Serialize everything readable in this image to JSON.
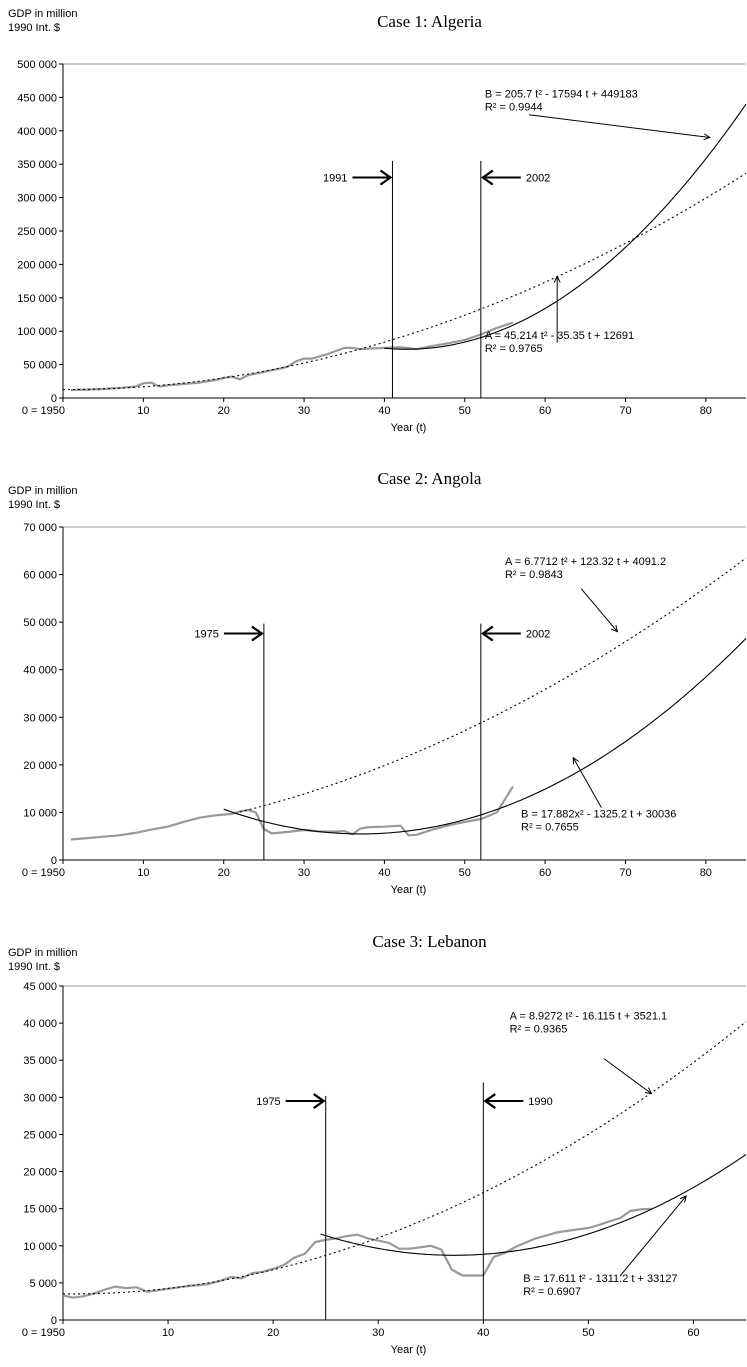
{
  "chart_data": [
    {
      "type": "line",
      "title": "Case 1: Algeria",
      "ylabel_line1": "GDP in million",
      "ylabel_line2": "1990 Int. $",
      "xlabel": "Year (t)",
      "xlim": [
        0,
        85
      ],
      "ylim": [
        0,
        500000
      ],
      "x_ticks": [
        0,
        10,
        20,
        30,
        40,
        50,
        60,
        70,
        80
      ],
      "x_tick_labels": [
        "0 = 1950",
        "10",
        "20",
        "30",
        "40",
        "50",
        "60",
        "70",
        "80"
      ],
      "y_ticks": [
        0,
        50000,
        100000,
        150000,
        200000,
        250000,
        300000,
        350000,
        400000,
        450000,
        500000
      ],
      "y_tick_labels": [
        "0",
        "50 000",
        "100 000",
        "150 000",
        "200 000",
        "250 000",
        "300 000",
        "350 000",
        "400 000",
        "450 000",
        "500 000"
      ],
      "grid": false,
      "series": [
        {
          "kind": "observed",
          "color": "#999999",
          "x": [
            1,
            3,
            5,
            7,
            9,
            10,
            11,
            12,
            13,
            15,
            17,
            19,
            20,
            21,
            22,
            23,
            25,
            27,
            28,
            29,
            30,
            31,
            33,
            35,
            36,
            37,
            38,
            40,
            42,
            44,
            46,
            48,
            50,
            52,
            54,
            56
          ],
          "y": [
            12000,
            12500,
            13500,
            15000,
            17000,
            22000,
            23000,
            17000,
            19000,
            21000,
            23000,
            27000,
            30000,
            32000,
            28000,
            34000,
            39000,
            44000,
            47000,
            55000,
            59000,
            59000,
            66000,
            75000,
            75000,
            73000,
            74000,
            75000,
            76000,
            73000,
            78000,
            82000,
            87000,
            95000,
            105000,
            113000
          ]
        },
        {
          "kind": "fit_A",
          "style": "dotted",
          "x_from": 0,
          "x_to": 85,
          "coeffs": [
            45.214,
            -35.35,
            12691
          ]
        },
        {
          "kind": "fit_B",
          "style": "solid",
          "x_from": 40,
          "x_to": 85,
          "coeffs": [
            205.7,
            -17594,
            449183
          ]
        }
      ],
      "markers": [
        {
          "x": 41,
          "label": "1991",
          "y_top": 355000,
          "arrow_y": 330000,
          "side": "left"
        },
        {
          "x": 52,
          "label": "2002",
          "y_top": 355000,
          "arrow_y": 330000,
          "side": "right"
        }
      ],
      "annotations": [
        {
          "id": "B",
          "line1": "B = 205.7 t² - 17594 t + 449183",
          "line2": "R² = 0.9944",
          "text_x": 52.5,
          "text_y": 450000,
          "from": [
            58,
            424000
          ],
          "to": [
            80.5,
            390000
          ]
        },
        {
          "id": "A",
          "line1": "A = 45.214 t² - 35.35 t + 12691",
          "line2": "R² = 0.9765",
          "text_x": 52.5,
          "text_y": 88000,
          "from": [
            61.5,
            83000
          ],
          "to": [
            61.5,
            182000
          ]
        }
      ]
    },
    {
      "type": "line",
      "title": "Case 2: Angola",
      "ylabel_line1": "GDP in million",
      "ylabel_line2": "1990 Int. $",
      "xlabel": "Year (t)",
      "xlim": [
        0,
        85
      ],
      "ylim": [
        0,
        70000
      ],
      "x_ticks": [
        0,
        10,
        20,
        30,
        40,
        50,
        60,
        70,
        80
      ],
      "x_tick_labels": [
        "0 = 1950",
        "10",
        "20",
        "30",
        "40",
        "50",
        "60",
        "70",
        "80"
      ],
      "y_ticks": [
        0,
        10000,
        20000,
        30000,
        40000,
        50000,
        60000,
        70000
      ],
      "y_tick_labels": [
        "0",
        "10 000",
        "20 000",
        "30 000",
        "40 000",
        "50 000",
        "60 000",
        "70 000"
      ],
      "grid": false,
      "series": [
        {
          "kind": "observed",
          "color": "#999999",
          "x": [
            1,
            3,
            5,
            7,
            9,
            11,
            13,
            15,
            17,
            19,
            21,
            22,
            23,
            24,
            25,
            26,
            28,
            30,
            32,
            34,
            35,
            36,
            37,
            38,
            40,
            42,
            43,
            44,
            46,
            48,
            50,
            52,
            54,
            56
          ],
          "y": [
            4300,
            4600,
            4900,
            5200,
            5700,
            6400,
            7000,
            8000,
            8900,
            9400,
            9700,
            10200,
            10500,
            10000,
            6500,
            5600,
            5900,
            6300,
            6000,
            6000,
            6100,
            5400,
            6600,
            6900,
            7000,
            7200,
            5200,
            5300,
            6400,
            7300,
            8000,
            8600,
            10000,
            15500
          ]
        },
        {
          "kind": "fit_A",
          "style": "dotted",
          "x_from": 22,
          "x_to": 85,
          "coeffs": [
            6.7712,
            123.32,
            4091.2
          ]
        },
        {
          "kind": "fit_B",
          "style": "solid",
          "x_from": 20,
          "x_to": 85,
          "coeffs": [
            17.882,
            -1325.2,
            30036
          ]
        }
      ],
      "markers": [
        {
          "x": 25,
          "label": "1975",
          "y_top": 49700,
          "arrow_y": 47600,
          "side": "left"
        },
        {
          "x": 52,
          "label": "2002",
          "y_top": 49700,
          "arrow_y": 47600,
          "side": "right"
        }
      ],
      "annotations": [
        {
          "id": "A",
          "line1": "A = 6.7712 t² + 123.32 t + 4091.2",
          "line2": "R² = 0.9843",
          "text_x": 55,
          "text_y": 62000,
          "from": [
            64.5,
            57000
          ],
          "to": [
            69,
            48000
          ]
        },
        {
          "id": "B",
          "line1": "B = 17.882x² - 1325.2 t + 30036",
          "line2": "R² = 0.7655",
          "text_x": 57,
          "text_y": 8900,
          "from": [
            67,
            11000
          ],
          "to": [
            63.5,
            21500
          ]
        }
      ]
    },
    {
      "type": "line",
      "title": "Case 3: Lebanon",
      "ylabel_line1": "GDP in million",
      "ylabel_line2": "1990 Int. $",
      "xlabel": "Year (t)",
      "xlim": [
        0,
        65
      ],
      "ylim": [
        0,
        45000
      ],
      "x_ticks": [
        0,
        10,
        20,
        30,
        40,
        50,
        60
      ],
      "x_tick_labels": [
        "0 = 1950",
        "10",
        "20",
        "30",
        "40",
        "50",
        "60"
      ],
      "y_ticks": [
        0,
        5000,
        10000,
        15000,
        20000,
        25000,
        30000,
        35000,
        40000,
        45000
      ],
      "y_tick_labels": [
        "0",
        "5 000",
        "10 000",
        "15 000",
        "20 000",
        "25 000",
        "30 000",
        "35 000",
        "40 000",
        "45 000"
      ],
      "grid": false,
      "series": [
        {
          "kind": "observed",
          "color": "#999999",
          "x": [
            0,
            1,
            2,
            3,
            4,
            5,
            6,
            7,
            8,
            9,
            10,
            11,
            12,
            13,
            14,
            15,
            16,
            17,
            18,
            19,
            20,
            21,
            22,
            23,
            24,
            25,
            26,
            27,
            28,
            29,
            30,
            31,
            32,
            33,
            34,
            35,
            36,
            37,
            38,
            39,
            40,
            41,
            42,
            43,
            44,
            45,
            46,
            47,
            48,
            49,
            50,
            51,
            52,
            53,
            54,
            55,
            56
          ],
          "y": [
            3300,
            3000,
            3200,
            3600,
            4100,
            4500,
            4300,
            4400,
            3800,
            4000,
            4200,
            4400,
            4600,
            4700,
            4900,
            5300,
            5800,
            5600,
            6300,
            6500,
            6900,
            7400,
            8400,
            8900,
            10500,
            10800,
            11000,
            11300,
            11500,
            11000,
            10700,
            10400,
            9600,
            9600,
            9800,
            10000,
            9500,
            6800,
            6000,
            6000,
            6000,
            8500,
            9000,
            9800,
            10400,
            11000,
            11400,
            11800,
            12000,
            12200,
            12400,
            12800,
            13300,
            13700,
            14700,
            14900,
            15000
          ]
        },
        {
          "kind": "fit_A",
          "style": "dotted",
          "x_from": 0,
          "x_to": 65,
          "coeffs": [
            8.9272,
            -16.115,
            3521.1
          ]
        },
        {
          "kind": "fit_B",
          "style": "solid",
          "x_from": 24.5,
          "x_to": 65,
          "coeffs": [
            17.611,
            -1311.2,
            33127
          ]
        }
      ],
      "markers": [
        {
          "x": 25,
          "label": "1975",
          "y_top": 30200,
          "arrow_y": 29500,
          "side": "left"
        },
        {
          "x": 40,
          "label": "1990",
          "y_top": 32000,
          "arrow_y": 29500,
          "side": "right"
        }
      ],
      "annotations": [
        {
          "id": "A",
          "line1": "A = 8.9272 t² - 16.115 t + 3521.1",
          "line2": "R² = 0.9365",
          "text_x": 42.5,
          "text_y": 40500,
          "from": [
            51.5,
            35200
          ],
          "to": [
            56,
            30500
          ]
        },
        {
          "id": "B",
          "line1": "B = 17.611 t² - 1311.2 t + 33127",
          "line2": "R² = 0.6907",
          "text_x": 43.8,
          "text_y": 5100,
          "from": [
            53,
            5900
          ],
          "to": [
            59.3,
            16700
          ]
        }
      ]
    }
  ]
}
